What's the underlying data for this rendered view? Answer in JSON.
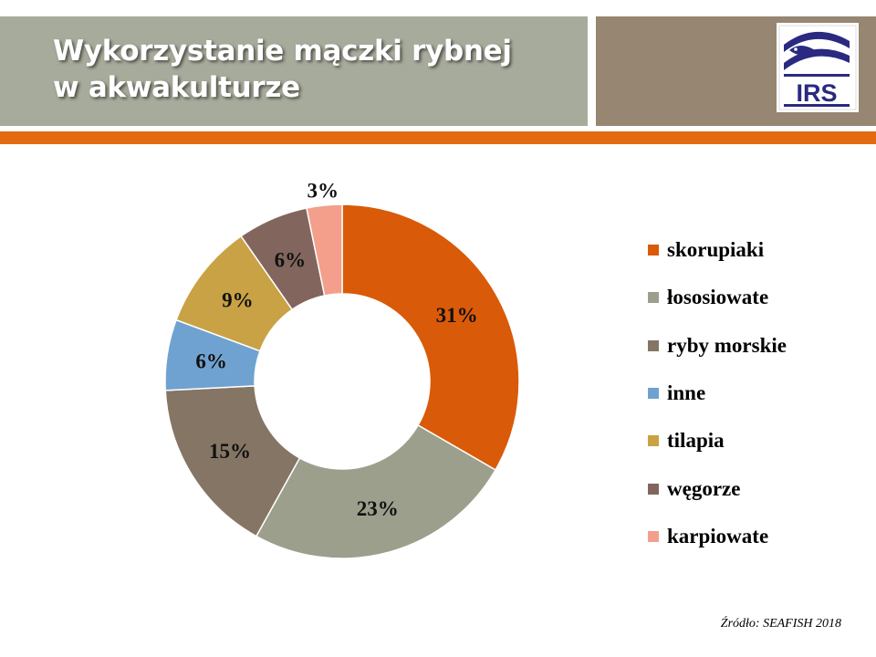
{
  "header": {
    "title_line1": "Wykorzystanie mączki rybnej",
    "title_line2": "w akwakulturze",
    "logo_text": "IRS",
    "colors": {
      "left_panel": "#a7ab9b",
      "right_panel": "#968672",
      "accent_bar": "#e36a10",
      "logo_blue": "#2b2a80"
    }
  },
  "chart_data": {
    "type": "pie",
    "style": "donut",
    "title": "",
    "legend_position": "right",
    "categories": [
      "skorupiaki",
      "łososiowate",
      "ryby morskie",
      "inne",
      "tilapia",
      "węgorze",
      "karpiowate"
    ],
    "values": [
      31,
      23,
      15,
      6,
      9,
      6,
      3
    ],
    "value_labels": [
      "31%",
      "23%",
      "15%",
      "6%",
      "9%",
      "6%",
      "3%"
    ],
    "colors": [
      "#d95a08",
      "#9b9f8c",
      "#857565",
      "#6fa2d0",
      "#c9a245",
      "#82665d",
      "#f39f8b"
    ]
  },
  "source": "Źródło: SEAFISH 2018"
}
